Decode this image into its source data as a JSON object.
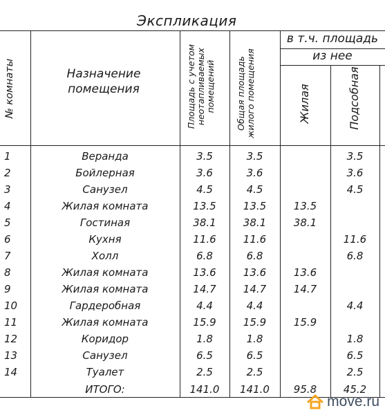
{
  "title": "Экспликация",
  "headers": {
    "room_no": "№ комнаты",
    "purpose": "Назначение помещения",
    "area_with_unheated": "Площадь с учетом неотапливаемых помещений",
    "total_living_area": "Общая площадь жилого помещения",
    "including_area": "в т.ч. площадь",
    "of_which": "из нее",
    "living": "Жилая",
    "auxiliary": "Подсобная"
  },
  "rows": [
    {
      "no": "1",
      "name": "Веранда",
      "a1": "3.5",
      "a2": "3.5",
      "living": "",
      "aux": "3.5"
    },
    {
      "no": "2",
      "name": "Бойлерная",
      "a1": "3.6",
      "a2": "3.6",
      "living": "",
      "aux": "3.6"
    },
    {
      "no": "3",
      "name": "Санузел",
      "a1": "4.5",
      "a2": "4.5",
      "living": "",
      "aux": "4.5"
    },
    {
      "no": "4",
      "name": "Жилая комната",
      "a1": "13.5",
      "a2": "13.5",
      "living": "13.5",
      "aux": ""
    },
    {
      "no": "5",
      "name": "Гостиная",
      "a1": "38.1",
      "a2": "38.1",
      "living": "38.1",
      "aux": ""
    },
    {
      "no": "6",
      "name": "Кухня",
      "a1": "11.6",
      "a2": "11.6",
      "living": "",
      "aux": "11.6"
    },
    {
      "no": "7",
      "name": "Холл",
      "a1": "6.8",
      "a2": "6.8",
      "living": "",
      "aux": "6.8"
    },
    {
      "no": "8",
      "name": "Жилая комната",
      "a1": "13.6",
      "a2": "13.6",
      "living": "13.6",
      "aux": ""
    },
    {
      "no": "9",
      "name": "Жилая комната",
      "a1": "14.7",
      "a2": "14.7",
      "living": "14.7",
      "aux": ""
    },
    {
      "no": "10",
      "name": "Гардеробная",
      "a1": "4.4",
      "a2": "4.4",
      "living": "",
      "aux": "4.4"
    },
    {
      "no": "11",
      "name": "Жилая комната",
      "a1": "15.9",
      "a2": "15.9",
      "living": "15.9",
      "aux": ""
    },
    {
      "no": "12",
      "name": "Коридор",
      "a1": "1.8",
      "a2": "1.8",
      "living": "",
      "aux": "1.8"
    },
    {
      "no": "13",
      "name": "Санузел",
      "a1": "6.5",
      "a2": "6.5",
      "living": "",
      "aux": "6.5"
    },
    {
      "no": "14",
      "name": "Туалет",
      "a1": "2.5",
      "a2": "2.5",
      "living": "",
      "aux": "2.5"
    }
  ],
  "total": {
    "label": "ИТОГО:",
    "a1": "141.0",
    "a2": "141.0",
    "living": "95.8",
    "aux": "45.2"
  },
  "watermark": {
    "text": "move.ru",
    "icon": "house-icon",
    "icon_color": "#f5a623",
    "text_color": "#3f4d5f"
  }
}
